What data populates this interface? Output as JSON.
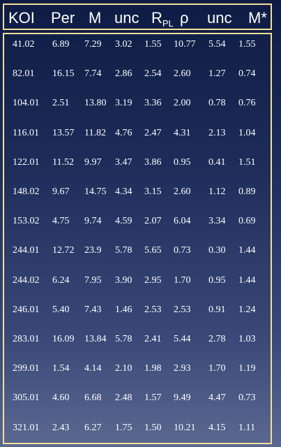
{
  "table": {
    "headers": [
      "KOI",
      "Per",
      "M",
      "unc",
      "R",
      "ρ",
      "unc",
      "M*"
    ],
    "radius_subscript": "PL",
    "rows": [
      [
        "41.02",
        "6.89",
        "7.29",
        "3.02",
        "1.55",
        "10.77",
        "5.54",
        "1.55"
      ],
      [
        "82.01",
        "16.15",
        "7.74",
        "2.86",
        "2.54",
        "2.60",
        "1.27",
        "0.74"
      ],
      [
        "104.01",
        "2.51",
        "13.80",
        "3.19",
        "3.36",
        "2.00",
        "0.78",
        "0.76"
      ],
      [
        "116.01",
        "13.57",
        "11.82",
        "4.76",
        "2.47",
        "4.31",
        "2.13",
        "1.04"
      ],
      [
        "122.01",
        "11.52",
        "9.97",
        "3.47",
        "3.86",
        "0.95",
        "0.41",
        "1.51"
      ],
      [
        "148.02",
        "9.67",
        "14.75",
        "4.34",
        "3.15",
        "2.60",
        "1.12",
        "0.89"
      ],
      [
        "153.02",
        "4.75",
        "9.74",
        "4.59",
        "2.07",
        "6.04",
        "3.34",
        "0.69"
      ],
      [
        "244.01",
        "12.72",
        "23.9",
        "5.78",
        "5.65",
        "0.73",
        "0.30",
        "1.44"
      ],
      [
        "244.02",
        "6.24",
        "7.95",
        "3.90",
        "2.95",
        "1.70",
        "0.95",
        "1.44"
      ],
      [
        "246.01",
        "5.40",
        "7.43",
        "1.46",
        "2.53",
        "2.53",
        "0.91",
        "1.24"
      ],
      [
        "283.01",
        "16.09",
        "13.84",
        "5.78",
        "2.41",
        "5.44",
        "2.78",
        "1.03"
      ],
      [
        "299.01",
        "1.54",
        "4.14",
        "2.10",
        "1.98",
        "2.93",
        "1.70",
        "1.19"
      ],
      [
        "305.01",
        "4.60",
        "6.68",
        "2.48",
        "1.57",
        "9.49",
        "4.47",
        "0.73"
      ],
      [
        "321.01",
        "2.43",
        "6.27",
        "1.75",
        "1.50",
        "10.21",
        "4.15",
        "1.11"
      ]
    ]
  }
}
